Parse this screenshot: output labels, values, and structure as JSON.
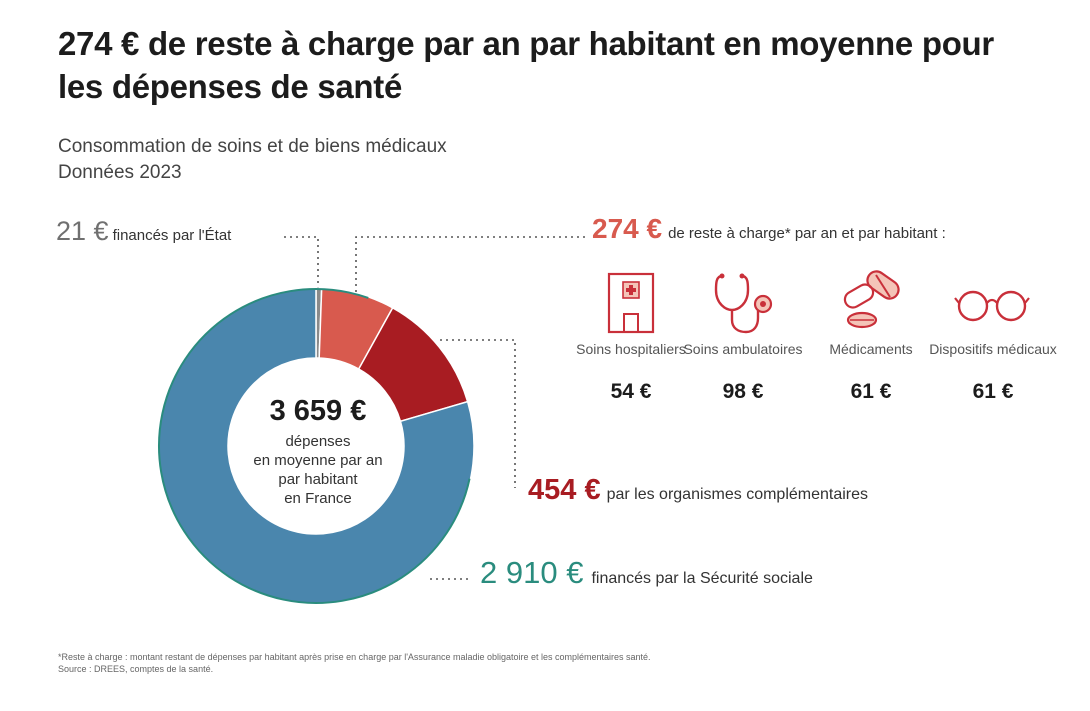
{
  "header": {
    "title": "274 € de reste à charge par an par habitant en moyenne pour les dépenses de santé",
    "subtitle_line1": "Consommation de soins et de biens médicaux",
    "subtitle_line2": "Données 2023"
  },
  "colors": {
    "securite_sociale": "#4a86ad",
    "organismes": "#a81c22",
    "reste_a_charge": "#d85a4e",
    "etat": "#8a8a8a",
    "ring_edge": "#2a8c7e",
    "icon": "#c9303a"
  },
  "chart_data": {
    "type": "pie",
    "variant": "donut",
    "total": {
      "value": "3 659 €",
      "label": [
        "dépenses",
        "en moyenne par an",
        "par habitant",
        "en France"
      ]
    },
    "slices": [
      {
        "name": "Sécurité sociale",
        "value": 2910,
        "value_label": "2 910 €",
        "text": "financés par la Sécurité sociale"
      },
      {
        "name": "organismes complémentaires",
        "value": 454,
        "value_label": "454 €",
        "text": "par les organismes complémentaires"
      },
      {
        "name": "reste à charge",
        "value": 274,
        "value_label": "274 €",
        "text": "de reste à charge* par an et par habitant :"
      },
      {
        "name": "État",
        "value": 21,
        "value_label": "21 €",
        "text": "financés par l'État"
      }
    ]
  },
  "breakdown": [
    {
      "name": "Soins hospitaliers",
      "amount": "54 €",
      "icon": "hospital-icon"
    },
    {
      "name": "Soins ambulatoires",
      "amount": "98 €",
      "icon": "stethoscope-icon"
    },
    {
      "name": "Médicaments",
      "amount": "61 €",
      "icon": "pills-icon"
    },
    {
      "name": "Dispositifs médicaux",
      "amount": "61 €",
      "icon": "glasses-icon"
    }
  ],
  "footnote": {
    "line1": "*Reste à charge : montant restant de dépenses par habitant après prise en charge par l'Assurance maladie obligatoire et les complémentaires santé.",
    "line2": "Source : DREES, comptes de la santé."
  }
}
